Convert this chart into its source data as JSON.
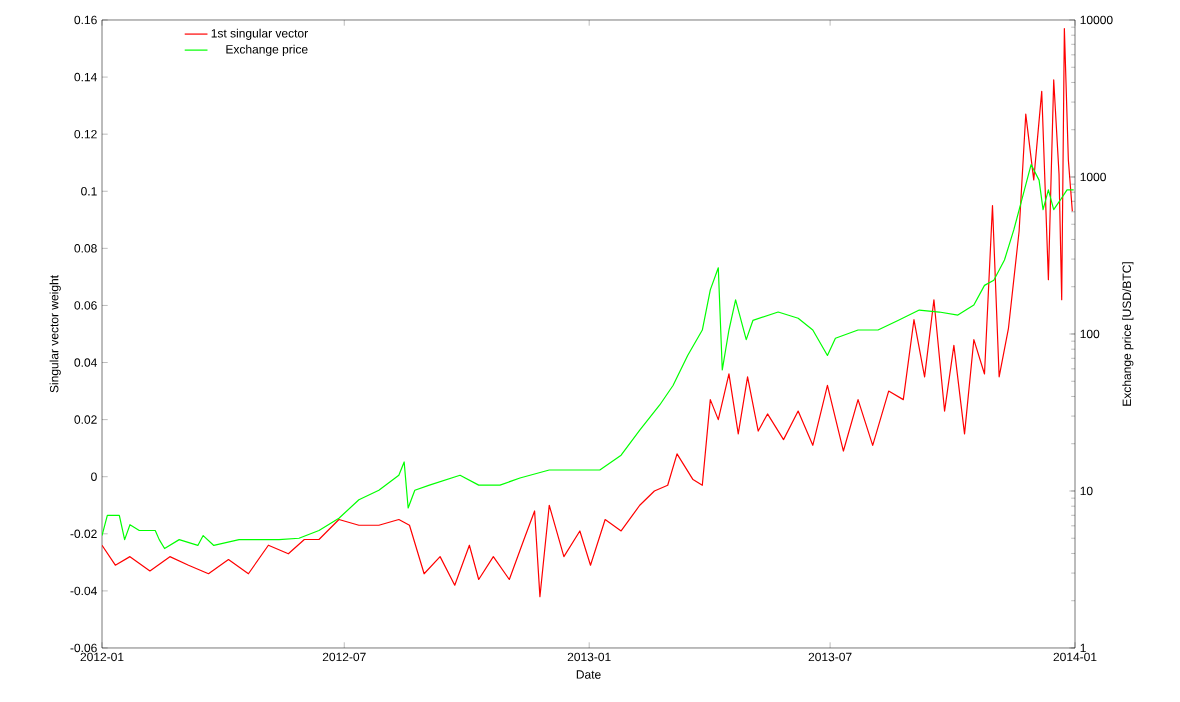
{
  "chart_data": {
    "type": "line",
    "xlabel": "Date",
    "ylabel": "Singular vector weight",
    "y2label": "Exchange price [USD/BTC]",
    "xlim": [
      "2012-01-01",
      "2014-01-01"
    ],
    "xticks": [
      "2012-01",
      "2012-07",
      "2013-01",
      "2013-07",
      "2014-01"
    ],
    "ylim": [
      -0.06,
      0.16
    ],
    "yticks": [
      -0.06,
      -0.04,
      -0.02,
      0,
      0.02,
      0.04,
      0.06,
      0.08,
      0.1,
      0.12,
      0.14,
      0.16
    ],
    "y2lim": [
      1,
      10000
    ],
    "y2ticks": [
      1,
      10,
      100,
      1000,
      10000
    ],
    "log": "y2",
    "legend": "top left",
    "series": [
      {
        "name": "1st singular vector",
        "color": "#ff0000",
        "x": [
          "2012-01-01",
          "2012-01-11",
          "2012-01-22",
          "2012-02-06",
          "2012-02-21",
          "2012-03-06",
          "2012-03-21",
          "2012-04-05",
          "2012-04-20",
          "2012-05-05",
          "2012-05-20",
          "2012-06-01",
          "2012-06-12",
          "2012-06-27",
          "2012-07-12",
          "2012-07-27",
          "2012-08-11",
          "2012-08-19",
          "2012-08-30",
          "2012-09-11",
          "2012-09-22",
          "2012-10-03",
          "2012-10-10",
          "2012-10-21",
          "2012-11-02",
          "2012-11-13",
          "2012-11-21",
          "2012-11-25",
          "2012-12-02",
          "2012-12-13",
          "2012-12-25",
          "2013-01-02",
          "2013-01-13",
          "2013-01-25",
          "2013-02-08",
          "2013-02-19",
          "2013-03-01",
          "2013-03-08",
          "2013-03-20",
          "2013-03-27",
          "2013-04-02",
          "2013-04-08",
          "2013-04-16",
          "2013-04-23",
          "2013-04-30",
          "2013-05-08",
          "2013-05-15",
          "2013-05-27",
          "2013-06-07",
          "2013-06-18",
          "2013-06-29",
          "2013-07-11",
          "2013-07-22",
          "2013-08-02",
          "2013-08-14",
          "2013-08-25",
          "2013-09-02",
          "2013-09-10",
          "2013-09-17",
          "2013-09-25",
          "2013-10-02",
          "2013-10-10",
          "2013-10-17",
          "2013-10-25",
          "2013-10-31",
          "2013-11-05",
          "2013-11-12",
          "2013-11-20",
          "2013-11-25",
          "2013-12-01",
          "2013-12-07",
          "2013-12-12",
          "2013-12-16",
          "2013-12-20",
          "2013-12-22",
          "2013-12-24",
          "2013-12-27",
          "2013-12-30"
        ],
        "values": [
          -0.024,
          -0.031,
          -0.028,
          -0.033,
          -0.028,
          -0.031,
          -0.034,
          -0.029,
          -0.034,
          -0.024,
          -0.027,
          -0.022,
          -0.022,
          -0.015,
          -0.017,
          -0.017,
          -0.015,
          -0.017,
          -0.034,
          -0.028,
          -0.038,
          -0.024,
          -0.036,
          -0.028,
          -0.036,
          -0.022,
          -0.012,
          -0.042,
          -0.01,
          -0.028,
          -0.019,
          -0.031,
          -0.015,
          -0.019,
          -0.01,
          -0.005,
          -0.003,
          0.008,
          -0.001,
          -0.003,
          0.027,
          0.02,
          0.036,
          0.015,
          0.035,
          0.016,
          0.022,
          0.013,
          0.023,
          0.011,
          0.032,
          0.009,
          0.027,
          0.011,
          0.03,
          0.027,
          0.055,
          0.035,
          0.062,
          0.023,
          0.046,
          0.015,
          0.048,
          0.036,
          0.095,
          0.035,
          0.052,
          0.086,
          0.127,
          0.104,
          0.135,
          0.069,
          0.139,
          0.106,
          0.062,
          0.157,
          0.111,
          0.093
        ]
      },
      {
        "name": "Exchange price",
        "color": "#00ff00",
        "axis": "y2",
        "x": [
          "2012-01-01",
          "2012-01-05",
          "2012-01-14",
          "2012-01-18",
          "2012-01-22",
          "2012-01-29",
          "2012-02-10",
          "2012-02-13",
          "2012-02-17",
          "2012-02-28",
          "2012-03-13",
          "2012-03-17",
          "2012-03-25",
          "2012-04-13",
          "2012-04-28",
          "2012-05-13",
          "2012-05-28",
          "2012-06-12",
          "2012-06-27",
          "2012-07-12",
          "2012-07-27",
          "2012-08-11",
          "2012-08-15",
          "2012-08-18",
          "2012-08-23",
          "2012-09-03",
          "2012-09-26",
          "2012-10-10",
          "2012-10-26",
          "2012-11-10",
          "2012-12-02",
          "2012-12-25",
          "2013-01-09",
          "2013-01-25",
          "2013-02-08",
          "2013-02-23",
          "2013-03-05",
          "2013-03-16",
          "2013-03-27",
          "2013-04-02",
          "2013-04-08",
          "2013-04-11",
          "2013-04-16",
          "2013-04-21",
          "2013-04-29",
          "2013-05-04",
          "2013-05-23",
          "2013-06-07",
          "2013-06-18",
          "2013-06-29",
          "2013-07-05",
          "2013-07-22",
          "2013-08-06",
          "2013-08-21",
          "2013-09-06",
          "2013-09-21",
          "2013-10-05",
          "2013-10-17",
          "2013-10-25",
          "2013-11-01",
          "2013-11-09",
          "2013-11-16",
          "2013-11-24",
          "2013-11-29",
          "2013-12-05",
          "2013-12-08",
          "2013-12-12",
          "2013-12-16",
          "2013-12-21",
          "2013-12-26",
          "2013-12-31"
        ],
        "values": [
          5.2,
          7.0,
          7.0,
          4.9,
          6.1,
          5.6,
          5.6,
          4.9,
          4.3,
          4.9,
          4.5,
          5.2,
          4.5,
          4.9,
          4.9,
          4.9,
          5.0,
          5.6,
          6.7,
          8.8,
          10.1,
          12.6,
          15.3,
          7.8,
          10.1,
          10.9,
          12.6,
          10.9,
          10.9,
          12.1,
          13.6,
          13.6,
          13.6,
          16.9,
          24.4,
          35.3,
          47,
          73,
          106,
          191,
          264,
          59,
          106,
          165,
          92,
          122,
          138,
          126,
          106,
          73,
          94,
          106,
          106,
          122,
          142,
          138,
          132,
          153,
          204,
          220,
          296,
          460,
          828,
          1200,
          955,
          620,
          828,
          620,
          714,
          828,
          828
        ]
      }
    ]
  }
}
